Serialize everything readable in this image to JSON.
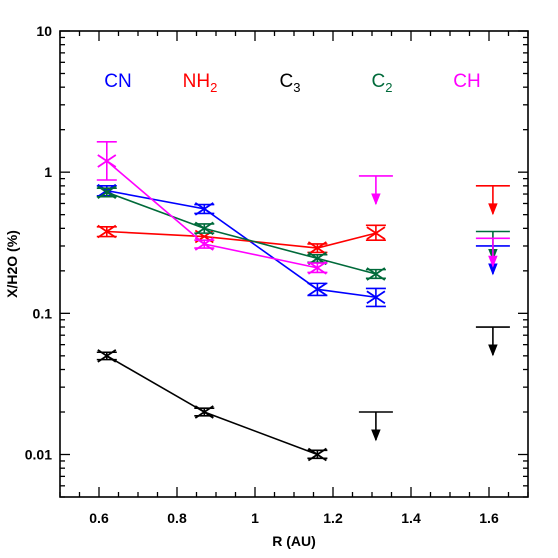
{
  "chart_data": {
    "type": "scatter",
    "xlabel": "R (AU)",
    "ylabel": "X/H2O (%)",
    "xlim": [
      0.5,
      1.7
    ],
    "ylim": [
      0.005,
      10
    ],
    "y_scale": "log",
    "x_ticks": [
      0.6,
      0.8,
      1,
      1.2,
      1.4,
      1.6
    ],
    "x_tick_labels": [
      "0.6",
      "0.8",
      "1",
      "1.2",
      "1.4",
      "1.6"
    ],
    "y_ticks": [
      0.01,
      0.1,
      1,
      10
    ],
    "y_tick_labels": [
      "0.01",
      "0.1",
      "1",
      "10"
    ],
    "grid": false,
    "legend": "labels across top of plot",
    "series": [
      {
        "key": "CN",
        "label_main": "CN",
        "label_sub": "",
        "color": "#0000ff",
        "points": [
          {
            "x": 0.62,
            "y": 0.74,
            "lo": 0.68,
            "hi": 0.8
          },
          {
            "x": 0.87,
            "y": 0.55,
            "lo": 0.51,
            "hi": 0.59
          },
          {
            "x": 1.16,
            "y": 0.148,
            "lo": 0.134,
            "hi": 0.163
          },
          {
            "x": 1.31,
            "y": 0.13,
            "lo": 0.112,
            "hi": 0.15
          }
        ],
        "upper_limits": [
          {
            "x": 1.61,
            "y": 0.3
          }
        ]
      },
      {
        "key": "NH2",
        "label_main": "NH",
        "label_sub": "2",
        "color": "#ff0000",
        "points": [
          {
            "x": 0.62,
            "y": 0.38,
            "lo": 0.35,
            "hi": 0.41
          },
          {
            "x": 0.87,
            "y": 0.35
          },
          {
            "x": 1.16,
            "y": 0.29,
            "lo": 0.27,
            "hi": 0.31
          },
          {
            "x": 1.31,
            "y": 0.37,
            "lo": 0.33,
            "hi": 0.42
          }
        ],
        "upper_limits": [
          {
            "x": 1.61,
            "y": 0.8
          }
        ]
      },
      {
        "key": "C3",
        "label_main": "C",
        "label_sub": "3",
        "color": "#000000",
        "points": [
          {
            "x": 0.62,
            "y": 0.05,
            "lo": 0.047,
            "hi": 0.053
          },
          {
            "x": 0.87,
            "y": 0.02,
            "lo": 0.0188,
            "hi": 0.0213
          },
          {
            "x": 1.16,
            "y": 0.01,
            "lo": 0.0094,
            "hi": 0.0107
          }
        ],
        "upper_limits": [
          {
            "x": 1.31,
            "y": 0.02
          },
          {
            "x": 1.61,
            "y": 0.08
          }
        ]
      },
      {
        "key": "C2",
        "label_main": "C",
        "label_sub": "2",
        "color": "#006a3a",
        "points": [
          {
            "x": 0.62,
            "y": 0.72,
            "lo": 0.67,
            "hi": 0.77
          },
          {
            "x": 0.87,
            "y": 0.4,
            "lo": 0.37,
            "hi": 0.43
          },
          {
            "x": 1.16,
            "y": 0.245,
            "lo": 0.23,
            "hi": 0.26
          },
          {
            "x": 1.31,
            "y": 0.19,
            "lo": 0.177,
            "hi": 0.204
          }
        ],
        "upper_limits": [
          {
            "x": 1.61,
            "y": 0.38
          }
        ]
      },
      {
        "key": "CH",
        "label_main": "CH",
        "label_sub": "",
        "color": "#ff00ff",
        "points": [
          {
            "x": 0.62,
            "y": 1.2,
            "lo": 0.88,
            "hi": 1.64
          },
          {
            "x": 0.87,
            "y": 0.31,
            "lo": 0.29,
            "hi": 0.33
          },
          {
            "x": 1.16,
            "y": 0.21,
            "lo": 0.195,
            "hi": 0.227
          }
        ],
        "upper_limits": [
          {
            "x": 1.31,
            "y": 0.94
          },
          {
            "x": 1.61,
            "y": 0.34
          }
        ]
      }
    ]
  }
}
